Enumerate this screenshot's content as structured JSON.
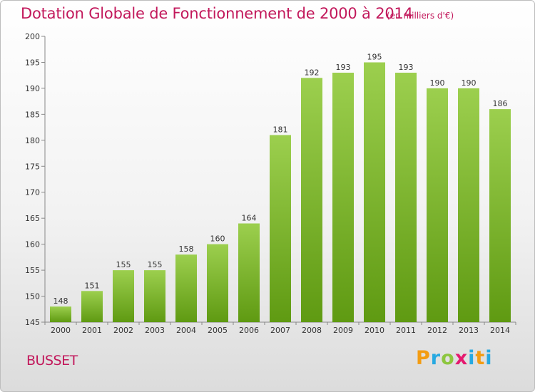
{
  "header": {
    "title": "Dotation Globale de Fonctionnement de 2000 à 2014",
    "subtitle": "(en milliers d'€)"
  },
  "footer": {
    "commune": "BUSSET",
    "logo": "Proxiti"
  },
  "colors": {
    "title": "#c2185b",
    "bar_top": "#9ccf4e",
    "bar_bottom": "#5f9a12"
  },
  "chart_data": {
    "type": "bar",
    "title": "Dotation Globale de Fonctionnement de 2000 à 2014",
    "subtitle": "(en milliers d'€)",
    "xlabel": "",
    "ylabel": "",
    "categories": [
      "2000",
      "2001",
      "2002",
      "2003",
      "2004",
      "2005",
      "2006",
      "2007",
      "2008",
      "2009",
      "2010",
      "2011",
      "2012",
      "2013",
      "2014"
    ],
    "values": [
      148,
      151,
      155,
      155,
      158,
      160,
      164,
      181,
      192,
      193,
      195,
      193,
      190,
      190,
      186
    ],
    "ylim": [
      145,
      200
    ],
    "yticks": [
      145,
      150,
      155,
      160,
      165,
      170,
      175,
      180,
      185,
      190,
      195,
      200
    ],
    "grid": false,
    "data_labels": true
  }
}
